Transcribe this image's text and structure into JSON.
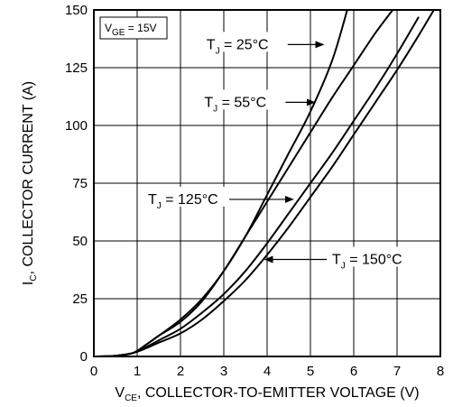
{
  "chart_data": {
    "type": "line",
    "xlabel": {
      "main": "V",
      "sub": "CE",
      "rest": ", COLLECTOR-TO-EMITTER VOLTAGE (V)"
    },
    "ylabel": {
      "main": "I",
      "sub": "C",
      "rest": ", COLLECTOR CURRENT (A)"
    },
    "xlim": [
      0,
      8
    ],
    "ylim": [
      0,
      150
    ],
    "xticks": [
      "0",
      "1",
      "2",
      "3",
      "4",
      "5",
      "6",
      "7",
      "8"
    ],
    "yticks": [
      "0",
      "25",
      "50",
      "75",
      "100",
      "125",
      "150"
    ],
    "grid": true,
    "condition": {
      "main": "V",
      "sub": "GE",
      "rest": " = 15V"
    },
    "series": [
      {
        "name": "T_J = 25°C",
        "label": {
          "main": "T",
          "sub": "J",
          "rest": " = 25°C"
        },
        "x": [
          0.0,
          0.5,
          0.9,
          1.2,
          1.5,
          2.0,
          2.5,
          3.0,
          3.5,
          4.0,
          4.5,
          5.0,
          5.5,
          5.85
        ],
        "y": [
          0.0,
          0.3,
          1.5,
          5,
          9,
          16,
          25,
          37,
          52,
          70,
          88,
          106,
          128,
          150
        ]
      },
      {
        "name": "T_J = 55°C",
        "label": {
          "main": "T",
          "sub": "J",
          "rest": " = 55°C"
        },
        "x": [
          0.0,
          0.5,
          0.9,
          1.2,
          1.5,
          2.0,
          2.5,
          3.0,
          3.5,
          4.0,
          4.5,
          5.0,
          5.5,
          6.0,
          6.5,
          6.9
        ],
        "y": [
          0.0,
          0.3,
          1.5,
          5,
          9,
          15,
          24,
          37,
          52,
          67,
          82,
          97,
          112,
          126,
          140,
          150
        ]
      },
      {
        "name": "T_J = 125°C",
        "label": {
          "main": "T",
          "sub": "J",
          "rest": " = 125°C"
        },
        "x": [
          0.0,
          0.5,
          0.9,
          1.2,
          1.5,
          2.0,
          2.5,
          3.0,
          3.5,
          4.0,
          4.5,
          5.0,
          5.5,
          6.0,
          6.5,
          7.0,
          7.5
        ],
        "y": [
          0.0,
          0.3,
          1.5,
          4,
          7,
          12,
          19,
          27,
          37,
          49,
          62,
          75,
          88,
          102,
          116,
          131,
          147
        ]
      },
      {
        "name": "T_J = 150°C",
        "label": {
          "main": "T",
          "sub": "J",
          "rest": " = 150°C"
        },
        "x": [
          0.0,
          0.5,
          0.9,
          1.2,
          1.5,
          2.0,
          2.5,
          3.0,
          3.5,
          4.0,
          4.5,
          5.0,
          5.5,
          6.0,
          6.5,
          7.0,
          7.5,
          7.85
        ],
        "y": [
          0.0,
          0.3,
          1.5,
          3.5,
          6,
          10,
          16,
          24,
          33,
          44,
          56,
          69,
          82,
          96,
          110,
          124,
          139,
          150
        ]
      }
    ],
    "annotations": [
      {
        "series": 0,
        "label_at": [
          2.6,
          135
        ],
        "arrow_to": [
          5.3,
          135
        ]
      },
      {
        "series": 1,
        "label_at": [
          2.55,
          110
        ],
        "arrow_to": [
          5.1,
          110
        ]
      },
      {
        "series": 2,
        "label_at": [
          1.25,
          68
        ],
        "arrow_to": [
          4.6,
          68
        ]
      },
      {
        "series": 3,
        "label_at": [
          5.5,
          42
        ],
        "arrow_to": [
          3.95,
          42
        ]
      }
    ]
  }
}
